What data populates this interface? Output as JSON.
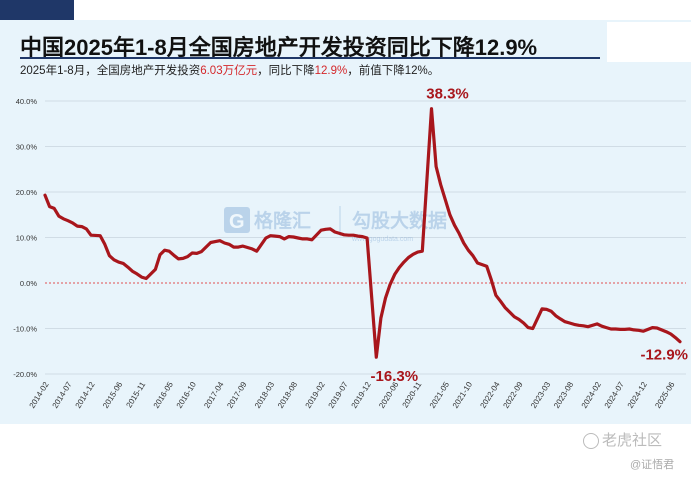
{
  "header": {
    "title": "中国2025年1-8月全国房地产开发投资同比下降12.9%",
    "subtitle_parts": [
      "2025年1-8月，全国房地产开发投资",
      "6.03万亿元",
      "，同比下降",
      "12.9%",
      "，前值下降12%。"
    ]
  },
  "watermark": {
    "brand": "格隆汇",
    "brand2": "勾股大数据",
    "site": "www.gogudata.com"
  },
  "footer": {
    "logo": "老虎社区",
    "author": "@证悟君"
  },
  "colors": {
    "line": "#a8161c",
    "highlight": "#d4282b",
    "panel": "#e8f4fb",
    "zero_line": "#e05050"
  },
  "chart_data": {
    "type": "line",
    "title": "中国2025年1-8月全国房地产开发投资同比下降12.9%",
    "xlabel": "",
    "ylabel": "",
    "ylim": [
      -20,
      40
    ],
    "yticks": [
      "-20.0%",
      "-10.0%",
      "0.0%",
      "10.0%",
      "20.0%",
      "30.0%",
      "40.0%"
    ],
    "ytick_values": [
      -20,
      -10,
      0,
      10,
      20,
      30,
      40
    ],
    "xticks": [
      "2014-02",
      "2014-07",
      "2014-12",
      "2015-06",
      "2015-11",
      "2016-05",
      "2016-10",
      "2017-04",
      "2017-09",
      "2018-03",
      "2018-08",
      "2019-02",
      "2019-07",
      "2019-12",
      "2020-06",
      "2020-11",
      "2021-05",
      "2021-10",
      "2022-04",
      "2022-09",
      "2023-03",
      "2023-08",
      "2024-02",
      "2024-07",
      "2024-12",
      "2025-06"
    ],
    "grid": true,
    "zero_line": "dotted red",
    "annotations": [
      {
        "text": "38.3%",
        "at": "2021-02"
      },
      {
        "text": "-16.3%",
        "at": "2020-02"
      },
      {
        "text": "-12.9%",
        "at": "2025-08"
      }
    ],
    "series": [
      {
        "values": [
          [
            "2014-02",
            19.3
          ],
          [
            "2014-03",
            16.8
          ],
          [
            "2014-04",
            16.4
          ],
          [
            "2014-05",
            14.7
          ],
          [
            "2014-06",
            14.1
          ],
          [
            "2014-07",
            13.7
          ],
          [
            "2014-08",
            13.2
          ],
          [
            "2014-09",
            12.5
          ],
          [
            "2014-10",
            12.4
          ],
          [
            "2014-11",
            11.9
          ],
          [
            "2014-12",
            10.5
          ],
          [
            "2015-02",
            10.4
          ],
          [
            "2015-03",
            8.5
          ],
          [
            "2015-04",
            6.0
          ],
          [
            "2015-05",
            5.1
          ],
          [
            "2015-06",
            4.6
          ],
          [
            "2015-07",
            4.3
          ],
          [
            "2015-08",
            3.5
          ],
          [
            "2015-09",
            2.6
          ],
          [
            "2015-10",
            2.0
          ],
          [
            "2015-11",
            1.3
          ],
          [
            "2015-12",
            1.0
          ],
          [
            "2016-02",
            3.0
          ],
          [
            "2016-03",
            6.2
          ],
          [
            "2016-04",
            7.2
          ],
          [
            "2016-05",
            7.0
          ],
          [
            "2016-06",
            6.1
          ],
          [
            "2016-07",
            5.3
          ],
          [
            "2016-08",
            5.4
          ],
          [
            "2016-09",
            5.8
          ],
          [
            "2016-10",
            6.6
          ],
          [
            "2016-11",
            6.5
          ],
          [
            "2016-12",
            6.9
          ],
          [
            "2017-02",
            8.9
          ],
          [
            "2017-03",
            9.1
          ],
          [
            "2017-04",
            9.3
          ],
          [
            "2017-05",
            8.8
          ],
          [
            "2017-06",
            8.5
          ],
          [
            "2017-07",
            7.9
          ],
          [
            "2017-08",
            7.9
          ],
          [
            "2017-09",
            8.1
          ],
          [
            "2017-10",
            7.8
          ],
          [
            "2017-11",
            7.5
          ],
          [
            "2017-12",
            7.0
          ],
          [
            "2018-02",
            9.9
          ],
          [
            "2018-03",
            10.4
          ],
          [
            "2018-04",
            10.3
          ],
          [
            "2018-05",
            10.2
          ],
          [
            "2018-06",
            9.7
          ],
          [
            "2018-07",
            10.2
          ],
          [
            "2018-08",
            10.1
          ],
          [
            "2018-09",
            9.9
          ],
          [
            "2018-10",
            9.7
          ],
          [
            "2018-11",
            9.7
          ],
          [
            "2018-12",
            9.5
          ],
          [
            "2019-02",
            11.6
          ],
          [
            "2019-03",
            11.8
          ],
          [
            "2019-04",
            11.9
          ],
          [
            "2019-05",
            11.2
          ],
          [
            "2019-06",
            10.9
          ],
          [
            "2019-07",
            10.6
          ],
          [
            "2019-08",
            10.5
          ],
          [
            "2019-09",
            10.5
          ],
          [
            "2019-10",
            10.3
          ],
          [
            "2019-11",
            10.2
          ],
          [
            "2019-12",
            9.9
          ],
          [
            "2020-02",
            -16.3
          ],
          [
            "2020-03",
            -7.7
          ],
          [
            "2020-04",
            -3.3
          ],
          [
            "2020-05",
            -0.3
          ],
          [
            "2020-06",
            1.9
          ],
          [
            "2020-07",
            3.4
          ],
          [
            "2020-08",
            4.6
          ],
          [
            "2020-09",
            5.6
          ],
          [
            "2020-10",
            6.3
          ],
          [
            "2020-11",
            6.8
          ],
          [
            "2020-12",
            7.0
          ],
          [
            "2021-02",
            38.3
          ],
          [
            "2021-03",
            25.6
          ],
          [
            "2021-04",
            21.6
          ],
          [
            "2021-05",
            18.3
          ],
          [
            "2021-06",
            15.0
          ],
          [
            "2021-07",
            12.7
          ],
          [
            "2021-08",
            10.9
          ],
          [
            "2021-09",
            8.8
          ],
          [
            "2021-10",
            7.2
          ],
          [
            "2021-11",
            6.0
          ],
          [
            "2021-12",
            4.4
          ],
          [
            "2022-02",
            3.7
          ],
          [
            "2022-03",
            0.7
          ],
          [
            "2022-04",
            -2.7
          ],
          [
            "2022-05",
            -4.0
          ],
          [
            "2022-06",
            -5.4
          ],
          [
            "2022-07",
            -6.4
          ],
          [
            "2022-08",
            -7.4
          ],
          [
            "2022-09",
            -8.0
          ],
          [
            "2022-10",
            -8.8
          ],
          [
            "2022-11",
            -9.8
          ],
          [
            "2022-12",
            -10.0
          ],
          [
            "2023-02",
            -5.7
          ],
          [
            "2023-03",
            -5.8
          ],
          [
            "2023-04",
            -6.2
          ],
          [
            "2023-05",
            -7.2
          ],
          [
            "2023-06",
            -7.9
          ],
          [
            "2023-07",
            -8.5
          ],
          [
            "2023-08",
            -8.8
          ],
          [
            "2023-09",
            -9.1
          ],
          [
            "2023-10",
            -9.3
          ],
          [
            "2023-11",
            -9.4
          ],
          [
            "2023-12",
            -9.6
          ],
          [
            "2024-02",
            -9.0
          ],
          [
            "2024-03",
            -9.5
          ],
          [
            "2024-04",
            -9.8
          ],
          [
            "2024-05",
            -10.1
          ],
          [
            "2024-06",
            -10.1
          ],
          [
            "2024-07",
            -10.2
          ],
          [
            "2024-08",
            -10.2
          ],
          [
            "2024-09",
            -10.1
          ],
          [
            "2024-10",
            -10.3
          ],
          [
            "2024-11",
            -10.4
          ],
          [
            "2024-12",
            -10.6
          ],
          [
            "2025-02",
            -9.8
          ],
          [
            "2025-03",
            -9.9
          ],
          [
            "2025-04",
            -10.3
          ],
          [
            "2025-05",
            -10.7
          ],
          [
            "2025-06",
            -11.2
          ],
          [
            "2025-07",
            -12.0
          ],
          [
            "2025-08",
            -12.9
          ]
        ]
      }
    ]
  }
}
